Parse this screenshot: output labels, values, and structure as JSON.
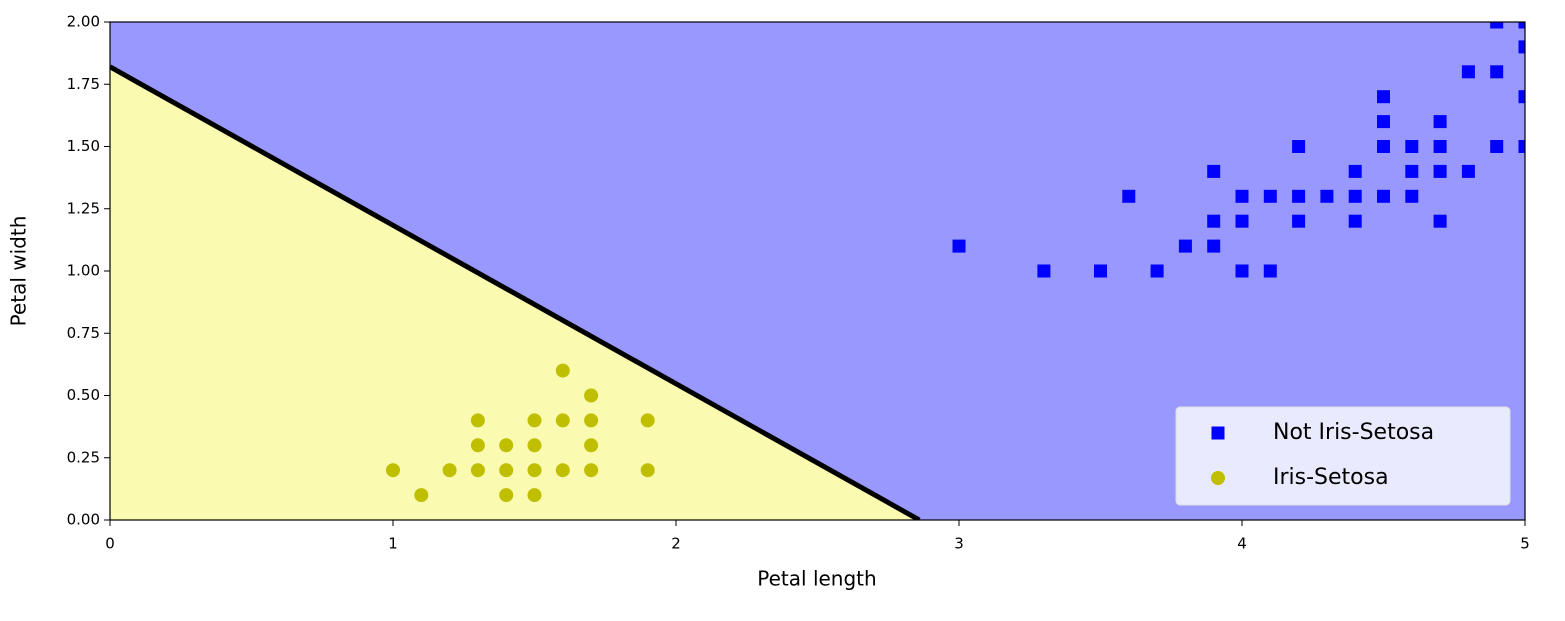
{
  "chart_data": {
    "type": "scatter",
    "x_label": "Petal length",
    "y_label": "Petal width",
    "xlim": [
      0,
      5
    ],
    "ylim": [
      0,
      2
    ],
    "xticks": [
      0,
      1,
      2,
      3,
      4,
      5
    ],
    "yticks": [
      {
        "value": 0,
        "label": "0.00"
      },
      0.25,
      {
        "value": 0.5,
        "label": "0.50"
      },
      0.75,
      {
        "value": 1,
        "label": "1.00"
      },
      1.25,
      {
        "value": 1.5,
        "label": "1.50"
      },
      1.75,
      {
        "value": 2,
        "label": "2.00"
      }
    ],
    "decision_boundary": {
      "x": [
        0,
        2.86
      ],
      "y": [
        1.82,
        0
      ],
      "color": "#000000",
      "fill_above": "#9898ff",
      "fill_below": "#fafab0"
    },
    "legend": "lower right",
    "series": [
      {
        "name": "Not Iris-Setosa",
        "color": "#0000ff",
        "marker": "square",
        "x": [
          3.0,
          3.3,
          3.5,
          3.6,
          3.7,
          3.8,
          3.9,
          3.9,
          3.9,
          4.0,
          4.0,
          4.0,
          4.1,
          4.1,
          4.2,
          4.2,
          4.2,
          4.3,
          4.4,
          4.4,
          4.4,
          4.5,
          4.5,
          4.5,
          4.5,
          4.6,
          4.6,
          4.6,
          4.7,
          4.7,
          4.7,
          4.7,
          4.8,
          4.8,
          4.9,
          4.9,
          4.9,
          5.0,
          5.0,
          5.0,
          5.0
        ],
        "y": [
          1.1,
          1.0,
          1.0,
          1.3,
          1.0,
          1.1,
          1.4,
          1.2,
          1.1,
          1.3,
          1.2,
          1.0,
          1.3,
          1.0,
          1.5,
          1.3,
          1.2,
          1.3,
          1.4,
          1.3,
          1.2,
          1.7,
          1.6,
          1.5,
          1.3,
          1.5,
          1.4,
          1.3,
          1.6,
          1.5,
          1.4,
          1.2,
          1.8,
          1.4,
          2.0,
          1.8,
          1.5,
          2.0,
          1.9,
          1.7,
          1.5
        ]
      },
      {
        "name": "Iris-Setosa",
        "color": "#bfbf00",
        "marker": "circle",
        "x": [
          1.0,
          1.1,
          1.2,
          1.3,
          1.3,
          1.3,
          1.4,
          1.4,
          1.4,
          1.5,
          1.5,
          1.5,
          1.5,
          1.6,
          1.6,
          1.6,
          1.7,
          1.7,
          1.7,
          1.7,
          1.9,
          1.9
        ],
        "y": [
          0.2,
          0.1,
          0.2,
          0.4,
          0.3,
          0.2,
          0.3,
          0.2,
          0.1,
          0.4,
          0.3,
          0.2,
          0.1,
          0.6,
          0.4,
          0.2,
          0.5,
          0.4,
          0.3,
          0.2,
          0.4,
          0.2
        ]
      }
    ]
  }
}
